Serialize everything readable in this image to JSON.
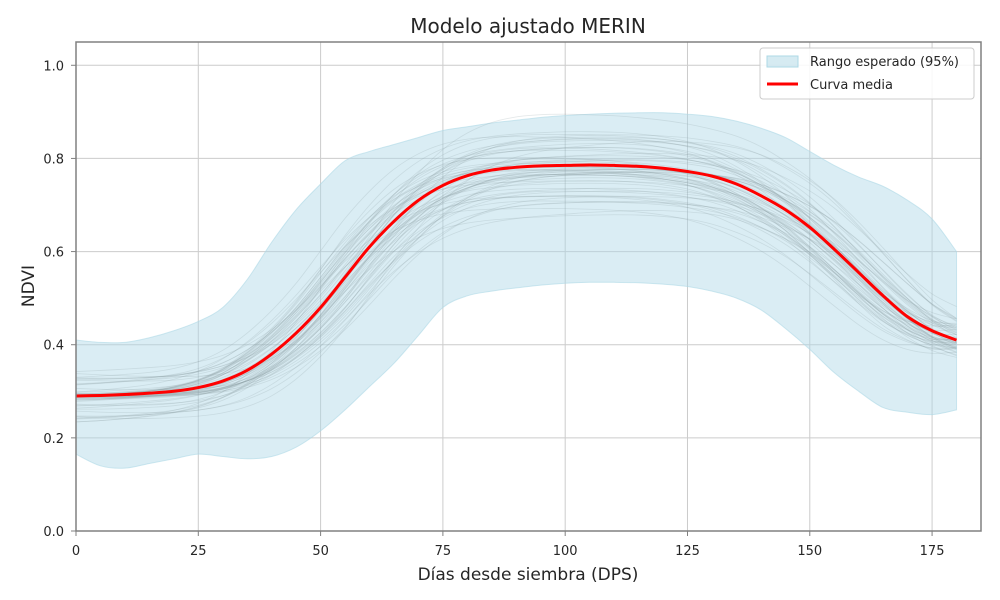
{
  "chart_data": {
    "type": "line",
    "title": "Modelo ajustado MERIN",
    "xlabel": "Días desde siembra (DPS)",
    "ylabel": "NDVI",
    "xlim": [
      0,
      185
    ],
    "ylim": [
      0,
      1.05
    ],
    "x_ticks": [
      0,
      25,
      50,
      75,
      100,
      125,
      150,
      175
    ],
    "y_ticks": [
      0.0,
      0.2,
      0.4,
      0.6,
      0.8,
      1.0
    ],
    "grid": true,
    "legend_position": "top-right",
    "legend": [
      {
        "label": "Rango esperado (95%)",
        "kind": "band",
        "color": "#add8e6"
      },
      {
        "label": "Curva media",
        "kind": "line",
        "color": "#ff0000"
      }
    ],
    "series": [
      {
        "name": "Curva media",
        "color": "#ff0000",
        "x": [
          0,
          5,
          10,
          15,
          20,
          25,
          30,
          35,
          40,
          45,
          50,
          55,
          60,
          65,
          70,
          75,
          80,
          85,
          90,
          95,
          100,
          105,
          110,
          115,
          120,
          125,
          130,
          135,
          140,
          145,
          150,
          155,
          160,
          165,
          170,
          175,
          180
        ],
        "y": [
          0.29,
          0.291,
          0.293,
          0.296,
          0.3,
          0.308,
          0.322,
          0.345,
          0.38,
          0.425,
          0.48,
          0.545,
          0.61,
          0.665,
          0.71,
          0.742,
          0.763,
          0.775,
          0.781,
          0.784,
          0.785,
          0.786,
          0.785,
          0.783,
          0.779,
          0.772,
          0.762,
          0.745,
          0.72,
          0.69,
          0.652,
          0.605,
          0.555,
          0.505,
          0.46,
          0.43,
          0.41
        ]
      }
    ],
    "band": {
      "name": "Rango esperado (95%)",
      "color": "#add8e6",
      "x": [
        0,
        5,
        10,
        15,
        20,
        25,
        30,
        35,
        40,
        45,
        50,
        55,
        60,
        65,
        70,
        75,
        80,
        85,
        90,
        95,
        100,
        105,
        110,
        115,
        120,
        125,
        130,
        135,
        140,
        145,
        150,
        155,
        160,
        165,
        170,
        175,
        180
      ],
      "upper": [
        0.41,
        0.405,
        0.405,
        0.415,
        0.43,
        0.45,
        0.48,
        0.54,
        0.62,
        0.69,
        0.745,
        0.795,
        0.815,
        0.83,
        0.845,
        0.86,
        0.868,
        0.876,
        0.882,
        0.888,
        0.892,
        0.895,
        0.897,
        0.898,
        0.898,
        0.895,
        0.89,
        0.88,
        0.865,
        0.845,
        0.815,
        0.785,
        0.76,
        0.74,
        0.71,
        0.67,
        0.6
      ],
      "lower": [
        0.165,
        0.14,
        0.135,
        0.145,
        0.155,
        0.165,
        0.16,
        0.155,
        0.16,
        0.18,
        0.215,
        0.26,
        0.31,
        0.36,
        0.42,
        0.48,
        0.505,
        0.515,
        0.522,
        0.528,
        0.532,
        0.534,
        0.534,
        0.533,
        0.53,
        0.525,
        0.515,
        0.5,
        0.475,
        0.435,
        0.39,
        0.34,
        0.3,
        0.265,
        0.255,
        0.25,
        0.26
      ]
    },
    "background_samples": {
      "count": 60,
      "color": "#8a9a9e"
    }
  }
}
